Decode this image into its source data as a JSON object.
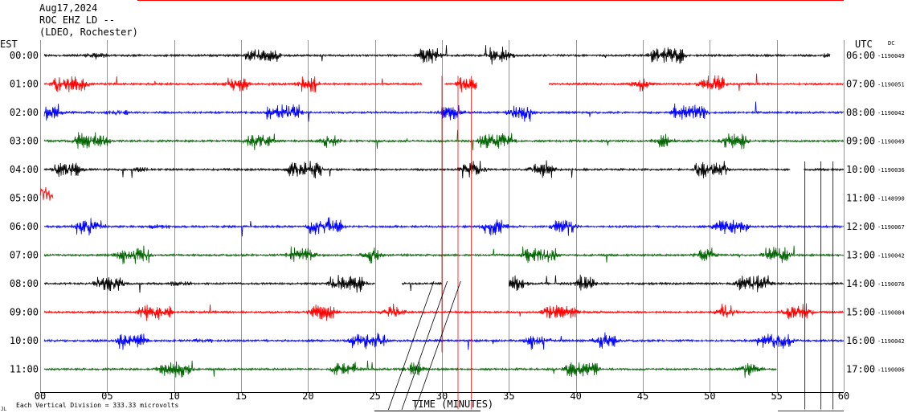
{
  "header": {
    "date": "Aug17,2024",
    "station": "ROC EHZ LD --",
    "network": "(LDEO, Rochester)"
  },
  "labels": {
    "left_tz": "EST",
    "right_tz": "UTC",
    "dc": "DC",
    "x_title": "TIME (MINUTES)",
    "footnote": "Each Vertical Division =  333.33 microvolts",
    "footnote_mark": "JL"
  },
  "colors": {
    "black": "#000000",
    "red": "#ff0000",
    "blue": "#0000ff",
    "green": "#006400"
  },
  "chart_data": {
    "type": "line",
    "title": "Aug17,2024",
    "xlabel": "TIME (MINUTES)",
    "xlim": [
      0,
      60
    ],
    "x_ticks": [
      0,
      5,
      10,
      15,
      20,
      25,
      30,
      35,
      40,
      45,
      50,
      55,
      60
    ],
    "x_tick_labels": [
      "00",
      "05",
      "10",
      "15",
      "20",
      "25",
      "30",
      "35",
      "40",
      "45",
      "50",
      "55",
      "60"
    ],
    "rows": [
      {
        "est": "00:00",
        "utc": "06:00",
        "dc": "-1190049",
        "color": "black",
        "segments": [
          [
            0.3,
            59
          ]
        ]
      },
      {
        "est": "01:00",
        "utc": "07:00",
        "dc": "-1190051",
        "color": "red",
        "segments": [
          [
            0.3,
            28.5
          ],
          [
            30.2,
            32.6
          ],
          [
            38,
            60
          ]
        ]
      },
      {
        "est": "02:00",
        "utc": "08:00",
        "dc": "-1190042",
        "color": "blue",
        "segments": [
          [
            0.3,
            60
          ]
        ]
      },
      {
        "est": "03:00",
        "utc": "09:00",
        "dc": "-1190049",
        "color": "green",
        "segments": [
          [
            0.3,
            60
          ]
        ]
      },
      {
        "est": "04:00",
        "utc": "10:00",
        "dc": "-1190036",
        "color": "black",
        "segments": [
          [
            0.3,
            56
          ],
          [
            57,
            60
          ]
        ]
      },
      {
        "est": "05:00",
        "utc": "11:00",
        "dc": "-1148990",
        "color": "red",
        "segments": [
          [
            0,
            1
          ]
        ]
      },
      {
        "est": "06:00",
        "utc": "12:00",
        "dc": "-1190067",
        "color": "blue",
        "segments": [
          [
            0.3,
            60
          ]
        ]
      },
      {
        "est": "07:00",
        "utc": "13:00",
        "dc": "-1190042",
        "color": "green",
        "segments": [
          [
            0.3,
            60
          ]
        ]
      },
      {
        "est": "08:00",
        "utc": "14:00",
        "dc": "-1190076",
        "color": "black",
        "segments": [
          [
            0.3,
            25
          ],
          [
            27,
            30
          ],
          [
            35,
            60
          ]
        ]
      },
      {
        "est": "09:00",
        "utc": "15:00",
        "dc": "-1190084",
        "color": "red",
        "segments": [
          [
            0.3,
            60
          ]
        ]
      },
      {
        "est": "10:00",
        "utc": "16:00",
        "dc": "-1190042",
        "color": "blue",
        "segments": [
          [
            0.3,
            60
          ]
        ]
      },
      {
        "est": "11:00",
        "utc": "17:00",
        "dc": "-1190006",
        "color": "green",
        "segments": [
          [
            0.3,
            55
          ]
        ]
      }
    ]
  }
}
